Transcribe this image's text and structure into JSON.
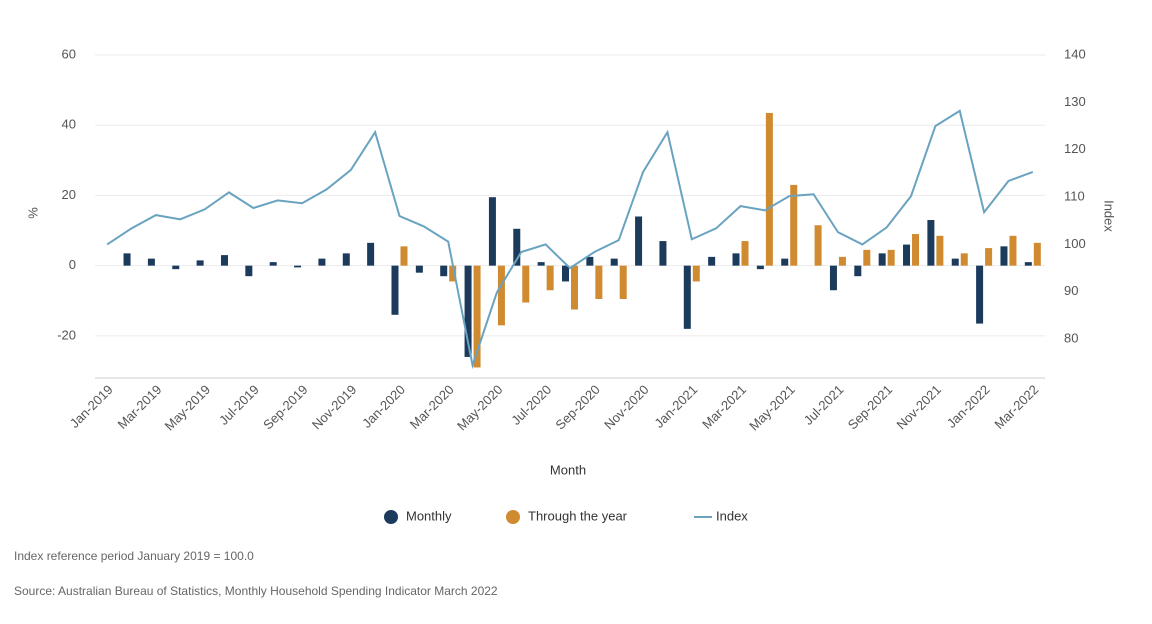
{
  "chart_data": {
    "type": "bar_line",
    "categories": [
      "Jan-2019",
      null,
      "Mar-2019",
      null,
      "May-2019",
      null,
      "Jul-2019",
      null,
      "Sep-2019",
      null,
      "Nov-2019",
      null,
      "Jan-2020",
      null,
      "Mar-2020",
      null,
      "May-2020",
      null,
      "Jul-2020",
      null,
      "Sep-2020",
      null,
      "Nov-2020",
      null,
      "Jan-2021",
      null,
      "Mar-2021",
      null,
      "May-2021",
      null,
      "Jul-2021",
      null,
      "Sep-2021",
      null,
      "Nov-2021",
      null,
      "Jan-2022",
      null,
      "Mar-2022"
    ],
    "x_label": "Month",
    "y_label": "%",
    "y2_label": "Index",
    "ylim": [
      -32,
      60
    ],
    "yticks": [
      -20,
      0,
      20,
      40,
      60
    ],
    "y2lim": [
      71.8,
      140
    ],
    "y2ticks": [
      80,
      90,
      100,
      110,
      120,
      130,
      140
    ],
    "grid": true,
    "series": [
      {
        "name": "Monthly",
        "type": "bar",
        "color": "#1b3a5c",
        "values": [
          null,
          3.5,
          2,
          -1,
          1.5,
          3,
          -3,
          1,
          -0.5,
          2,
          3.5,
          6.5,
          -14,
          -2,
          -3,
          -26,
          19.5,
          10.5,
          1,
          -4.5,
          2.5,
          2,
          14,
          7,
          -18,
          2.5,
          3.5,
          -1,
          2,
          0,
          -7,
          -3,
          3.5,
          6,
          13,
          2,
          -16.5,
          5.5,
          1
        ]
      },
      {
        "name": "Through the year",
        "type": "bar",
        "color": "#d08a30",
        "values": [
          null,
          null,
          null,
          null,
          null,
          null,
          null,
          null,
          null,
          null,
          null,
          null,
          5.5,
          0,
          -4.5,
          -29,
          -17,
          -10.5,
          -7,
          -12.5,
          -9.5,
          -9.5,
          0,
          0,
          -4.5,
          0,
          7,
          43.5,
          23,
          11.5,
          2.5,
          4.5,
          4.5,
          9,
          8.5,
          3.5,
          5,
          8.5,
          6.5
        ]
      },
      {
        "name": "Index",
        "type": "line",
        "axis": "y2",
        "color": "#6aa3c0",
        "values": [
          100,
          103.4,
          106.2,
          105.3,
          107.4,
          111,
          107.7,
          109.3,
          108.7,
          111.6,
          115.7,
          123.7,
          106,
          103.8,
          100.6,
          74.5,
          89.9,
          98.4,
          100,
          95,
          98.4,
          100.9,
          115.3,
          123.7,
          101.1,
          103.4,
          108.1,
          107.2,
          110.2,
          110.6,
          102.6,
          100,
          103.6,
          110.2,
          125,
          128.2,
          106.8,
          113.4,
          115.3
        ]
      }
    ],
    "notes": [
      "Index reference period January 2019 = 100.0",
      "Source: Australian Bureau of Statistics, Monthly Household Spending Indicator March 2022"
    ]
  }
}
